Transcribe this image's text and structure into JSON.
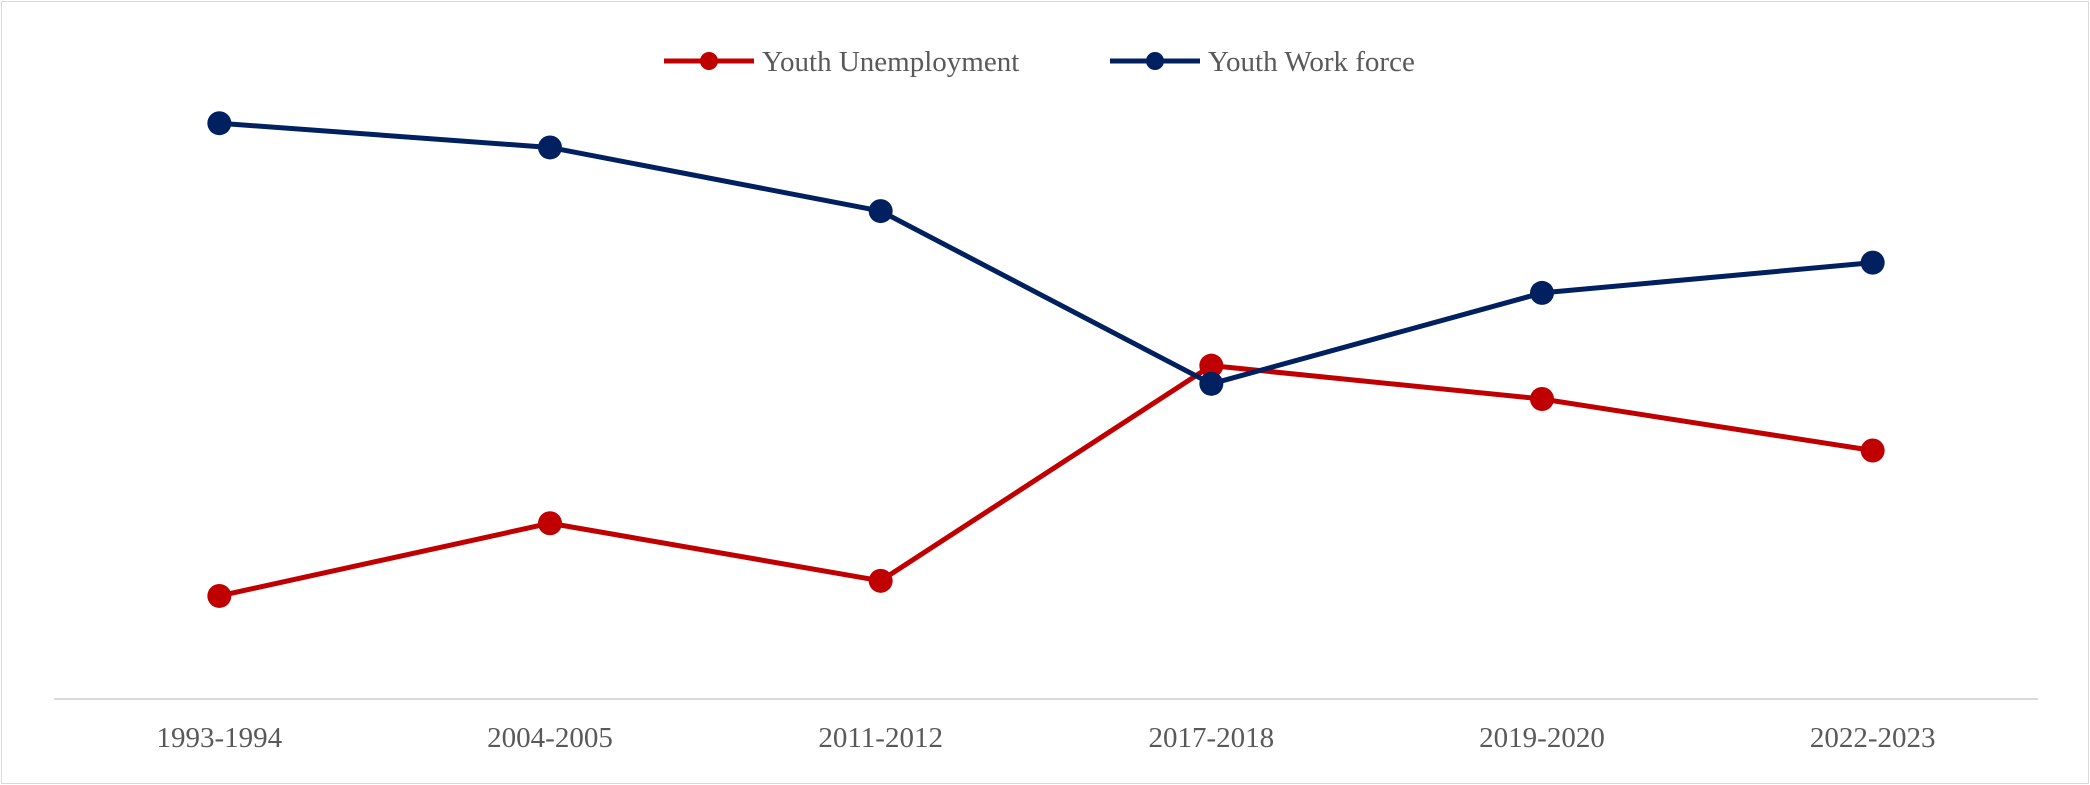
{
  "chart_data": {
    "type": "line",
    "title": "",
    "xlabel": "",
    "ylabel": "",
    "categories": [
      "1993-1994",
      "2004-2005",
      "2011-2012",
      "2017-2018",
      "2019-2020",
      "2022-2023"
    ],
    "series": [
      {
        "name": "Youth Unemployment",
        "color": "#C00000",
        "values": [
          2.0,
          4.4,
          2.5,
          9.6,
          8.5,
          6.8
        ]
      },
      {
        "name": "Youth Work force",
        "color": "#002060",
        "values": [
          17.6,
          16.8,
          14.7,
          9.0,
          12.0,
          13.0
        ]
      }
    ],
    "ylim": [
      -1.4,
      21.6
    ],
    "grid": false,
    "y_axis_visible": false,
    "legend_position": "top-center",
    "axis_line_color": "#d9d9d9",
    "tick_label_color": "#595959"
  }
}
